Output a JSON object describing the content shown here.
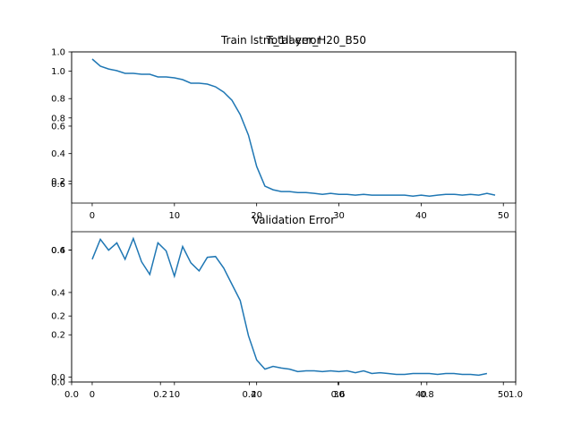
{
  "chart_data": [
    {
      "type": "frame",
      "title": "Total error",
      "xlim": [
        0,
        1
      ],
      "ylim": [
        0,
        1
      ],
      "xticks": [
        {
          "value": 0,
          "label": "0.0"
        },
        0.2,
        0.4,
        0.6,
        0.8,
        {
          "value": 1,
          "label": "1.0"
        }
      ],
      "yticks": [
        {
          "value": 0,
          "label": "0.0"
        },
        0.2,
        0.4,
        0.6,
        0.8,
        {
          "value": 1,
          "label": "1.0"
        }
      ]
    },
    {
      "type": "line",
      "title": "Train lstm_1layer_H20_B50",
      "x": [
        0,
        1,
        2,
        3,
        4,
        5,
        6,
        7,
        8,
        9,
        10,
        11,
        12,
        13,
        14,
        15,
        16,
        17,
        18,
        19,
        20,
        21,
        22,
        23,
        24,
        25,
        26,
        27,
        28,
        29,
        30,
        31,
        32,
        33,
        34,
        35,
        36,
        37,
        38,
        39,
        40,
        41,
        42,
        43,
        44,
        45,
        46,
        47,
        48,
        49
      ],
      "series": [
        {
          "color": "#1f77b4",
          "values": [
            1.088,
            1.036,
            1.016,
            1.003,
            0.984,
            0.984,
            0.977,
            0.977,
            0.958,
            0.958,
            0.951,
            0.938,
            0.912,
            0.912,
            0.906,
            0.886,
            0.847,
            0.788,
            0.684,
            0.534,
            0.306,
            0.163,
            0.137,
            0.124,
            0.124,
            0.117,
            0.117,
            0.111,
            0.104,
            0.111,
            0.104,
            0.104,
            0.098,
            0.104,
            0.098,
            0.098,
            0.098,
            0.098,
            0.098,
            0.091,
            0.098,
            0.091,
            0.098,
            0.104,
            0.104,
            0.098,
            0.104,
            0.098,
            0.111,
            0.098
          ]
        }
      ],
      "xlim": [
        -2.5,
        51.5
      ],
      "ylim": [
        0.04,
        1.14
      ],
      "xticks": [
        0,
        10,
        20,
        30,
        40,
        50
      ],
      "yticks": [
        0.2,
        0.4,
        0.6,
        0.8,
        {
          "value": 1,
          "label": "1.0"
        }
      ]
    },
    {
      "type": "line",
      "title": "Validation Error",
      "x": [
        0,
        1,
        2,
        3,
        4,
        5,
        6,
        7,
        8,
        9,
        10,
        11,
        12,
        13,
        14,
        15,
        16,
        17,
        18,
        19,
        20,
        21,
        22,
        23,
        24,
        25,
        26,
        27,
        28,
        29,
        30,
        31,
        32,
        33,
        34,
        35,
        36,
        37,
        38,
        39,
        40,
        41,
        42,
        43,
        44,
        45,
        46,
        47,
        48
      ],
      "series": [
        {
          "color": "#1f77b4",
          "values": [
            0.557,
            0.651,
            0.6,
            0.634,
            0.557,
            0.655,
            0.545,
            0.485,
            0.634,
            0.596,
            0.477,
            0.617,
            0.54,
            0.502,
            0.566,
            0.57,
            0.515,
            0.438,
            0.362,
            0.196,
            0.081,
            0.038,
            0.051,
            0.043,
            0.038,
            0.026,
            0.03,
            0.03,
            0.026,
            0.03,
            0.026,
            0.03,
            0.021,
            0.03,
            0.017,
            0.021,
            0.017,
            0.013,
            0.013,
            0.017,
            0.017,
            0.017,
            0.013,
            0.017,
            0.017,
            0.013,
            0.013,
            0.009,
            0.017
          ]
        }
      ],
      "xlim": [
        -2.5,
        51.5
      ],
      "ylim": [
        -0.023,
        0.687
      ],
      "xticks": [
        0,
        10,
        20,
        30,
        40,
        50
      ],
      "yticks": [
        {
          "value": 0,
          "label": "0.0"
        },
        0.2,
        0.4,
        0.6
      ]
    }
  ]
}
